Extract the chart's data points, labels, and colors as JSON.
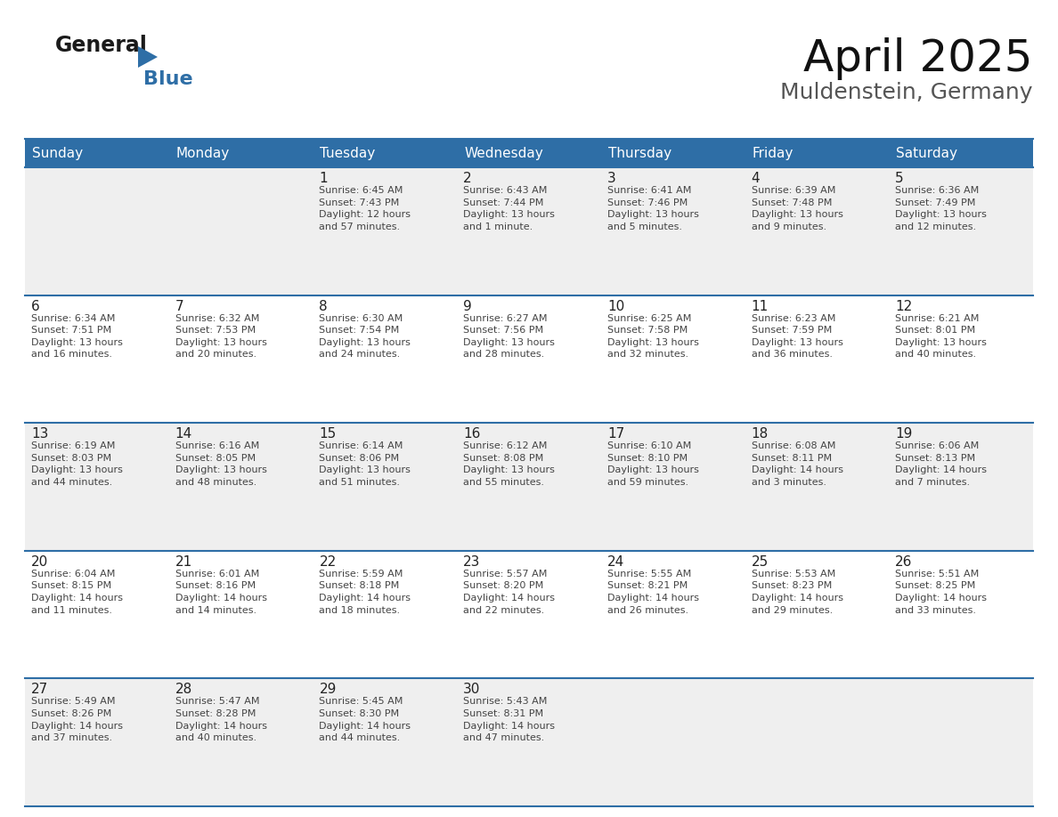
{
  "title": "April 2025",
  "subtitle": "Muldenstein, Germany",
  "header_bg_color": "#2E6EA6",
  "header_text_color": "#FFFFFF",
  "row_bg_even": "#EFEFEF",
  "row_bg_odd": "#FFFFFF",
  "divider_color": "#2E6EA6",
  "text_color": "#333333",
  "day_number_color": "#222222",
  "info_text_color": "#444444",
  "day_headers": [
    "Sunday",
    "Monday",
    "Tuesday",
    "Wednesday",
    "Thursday",
    "Friday",
    "Saturday"
  ],
  "logo_color1": "#1a1a1a",
  "logo_color2": "#2E6EA6",
  "title_fontsize": 36,
  "subtitle_fontsize": 18,
  "header_fontsize": 11,
  "day_num_fontsize": 11,
  "info_fontsize": 8,
  "weeks": [
    {
      "days": [
        {
          "day": "",
          "info": ""
        },
        {
          "day": "",
          "info": ""
        },
        {
          "day": "1",
          "info": "Sunrise: 6:45 AM\nSunset: 7:43 PM\nDaylight: 12 hours\nand 57 minutes."
        },
        {
          "day": "2",
          "info": "Sunrise: 6:43 AM\nSunset: 7:44 PM\nDaylight: 13 hours\nand 1 minute."
        },
        {
          "day": "3",
          "info": "Sunrise: 6:41 AM\nSunset: 7:46 PM\nDaylight: 13 hours\nand 5 minutes."
        },
        {
          "day": "4",
          "info": "Sunrise: 6:39 AM\nSunset: 7:48 PM\nDaylight: 13 hours\nand 9 minutes."
        },
        {
          "day": "5",
          "info": "Sunrise: 6:36 AM\nSunset: 7:49 PM\nDaylight: 13 hours\nand 12 minutes."
        }
      ]
    },
    {
      "days": [
        {
          "day": "6",
          "info": "Sunrise: 6:34 AM\nSunset: 7:51 PM\nDaylight: 13 hours\nand 16 minutes."
        },
        {
          "day": "7",
          "info": "Sunrise: 6:32 AM\nSunset: 7:53 PM\nDaylight: 13 hours\nand 20 minutes."
        },
        {
          "day": "8",
          "info": "Sunrise: 6:30 AM\nSunset: 7:54 PM\nDaylight: 13 hours\nand 24 minutes."
        },
        {
          "day": "9",
          "info": "Sunrise: 6:27 AM\nSunset: 7:56 PM\nDaylight: 13 hours\nand 28 minutes."
        },
        {
          "day": "10",
          "info": "Sunrise: 6:25 AM\nSunset: 7:58 PM\nDaylight: 13 hours\nand 32 minutes."
        },
        {
          "day": "11",
          "info": "Sunrise: 6:23 AM\nSunset: 7:59 PM\nDaylight: 13 hours\nand 36 minutes."
        },
        {
          "day": "12",
          "info": "Sunrise: 6:21 AM\nSunset: 8:01 PM\nDaylight: 13 hours\nand 40 minutes."
        }
      ]
    },
    {
      "days": [
        {
          "day": "13",
          "info": "Sunrise: 6:19 AM\nSunset: 8:03 PM\nDaylight: 13 hours\nand 44 minutes."
        },
        {
          "day": "14",
          "info": "Sunrise: 6:16 AM\nSunset: 8:05 PM\nDaylight: 13 hours\nand 48 minutes."
        },
        {
          "day": "15",
          "info": "Sunrise: 6:14 AM\nSunset: 8:06 PM\nDaylight: 13 hours\nand 51 minutes."
        },
        {
          "day": "16",
          "info": "Sunrise: 6:12 AM\nSunset: 8:08 PM\nDaylight: 13 hours\nand 55 minutes."
        },
        {
          "day": "17",
          "info": "Sunrise: 6:10 AM\nSunset: 8:10 PM\nDaylight: 13 hours\nand 59 minutes."
        },
        {
          "day": "18",
          "info": "Sunrise: 6:08 AM\nSunset: 8:11 PM\nDaylight: 14 hours\nand 3 minutes."
        },
        {
          "day": "19",
          "info": "Sunrise: 6:06 AM\nSunset: 8:13 PM\nDaylight: 14 hours\nand 7 minutes."
        }
      ]
    },
    {
      "days": [
        {
          "day": "20",
          "info": "Sunrise: 6:04 AM\nSunset: 8:15 PM\nDaylight: 14 hours\nand 11 minutes."
        },
        {
          "day": "21",
          "info": "Sunrise: 6:01 AM\nSunset: 8:16 PM\nDaylight: 14 hours\nand 14 minutes."
        },
        {
          "day": "22",
          "info": "Sunrise: 5:59 AM\nSunset: 8:18 PM\nDaylight: 14 hours\nand 18 minutes."
        },
        {
          "day": "23",
          "info": "Sunrise: 5:57 AM\nSunset: 8:20 PM\nDaylight: 14 hours\nand 22 minutes."
        },
        {
          "day": "24",
          "info": "Sunrise: 5:55 AM\nSunset: 8:21 PM\nDaylight: 14 hours\nand 26 minutes."
        },
        {
          "day": "25",
          "info": "Sunrise: 5:53 AM\nSunset: 8:23 PM\nDaylight: 14 hours\nand 29 minutes."
        },
        {
          "day": "26",
          "info": "Sunrise: 5:51 AM\nSunset: 8:25 PM\nDaylight: 14 hours\nand 33 minutes."
        }
      ]
    },
    {
      "days": [
        {
          "day": "27",
          "info": "Sunrise: 5:49 AM\nSunset: 8:26 PM\nDaylight: 14 hours\nand 37 minutes."
        },
        {
          "day": "28",
          "info": "Sunrise: 5:47 AM\nSunset: 8:28 PM\nDaylight: 14 hours\nand 40 minutes."
        },
        {
          "day": "29",
          "info": "Sunrise: 5:45 AM\nSunset: 8:30 PM\nDaylight: 14 hours\nand 44 minutes."
        },
        {
          "day": "30",
          "info": "Sunrise: 5:43 AM\nSunset: 8:31 PM\nDaylight: 14 hours\nand 47 minutes."
        },
        {
          "day": "",
          "info": ""
        },
        {
          "day": "",
          "info": ""
        },
        {
          "day": "",
          "info": ""
        }
      ]
    }
  ]
}
